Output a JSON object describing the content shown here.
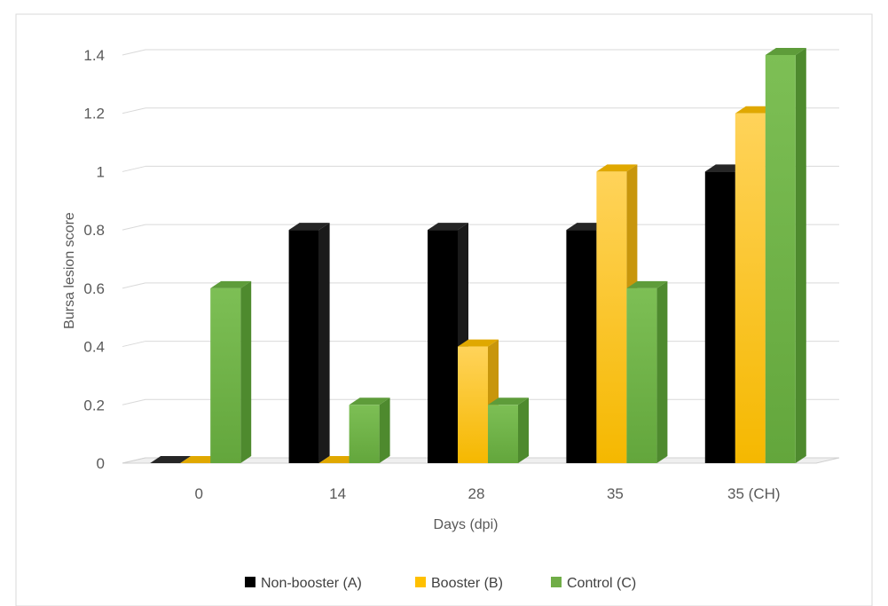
{
  "chart_data": {
    "type": "bar",
    "title": "",
    "xlabel": "Days (dpi)",
    "ylabel": "Bursa lesion score",
    "categories": [
      "0",
      "14",
      "28",
      "35",
      "35 (CH)"
    ],
    "ylim": [
      0,
      1.4
    ],
    "yticks": [
      "0",
      "0.2",
      "0.4",
      "0.6",
      "0.8",
      "1",
      "1.2",
      "1.4"
    ],
    "grid": true,
    "style": "3d-clustered-column",
    "legend_position": "bottom",
    "series": [
      {
        "name": "Non-booster (A)",
        "color": "#000000",
        "values": [
          0,
          0.8,
          0.8,
          0.8,
          1.0
        ]
      },
      {
        "name": "Booster (B)",
        "color": "#FFC000",
        "values": [
          0,
          0,
          0.4,
          1.0,
          1.2
        ]
      },
      {
        "name": "Control (C)",
        "color": "#70AD47",
        "values": [
          0.6,
          0.2,
          0.2,
          0.6,
          1.4
        ]
      }
    ]
  }
}
